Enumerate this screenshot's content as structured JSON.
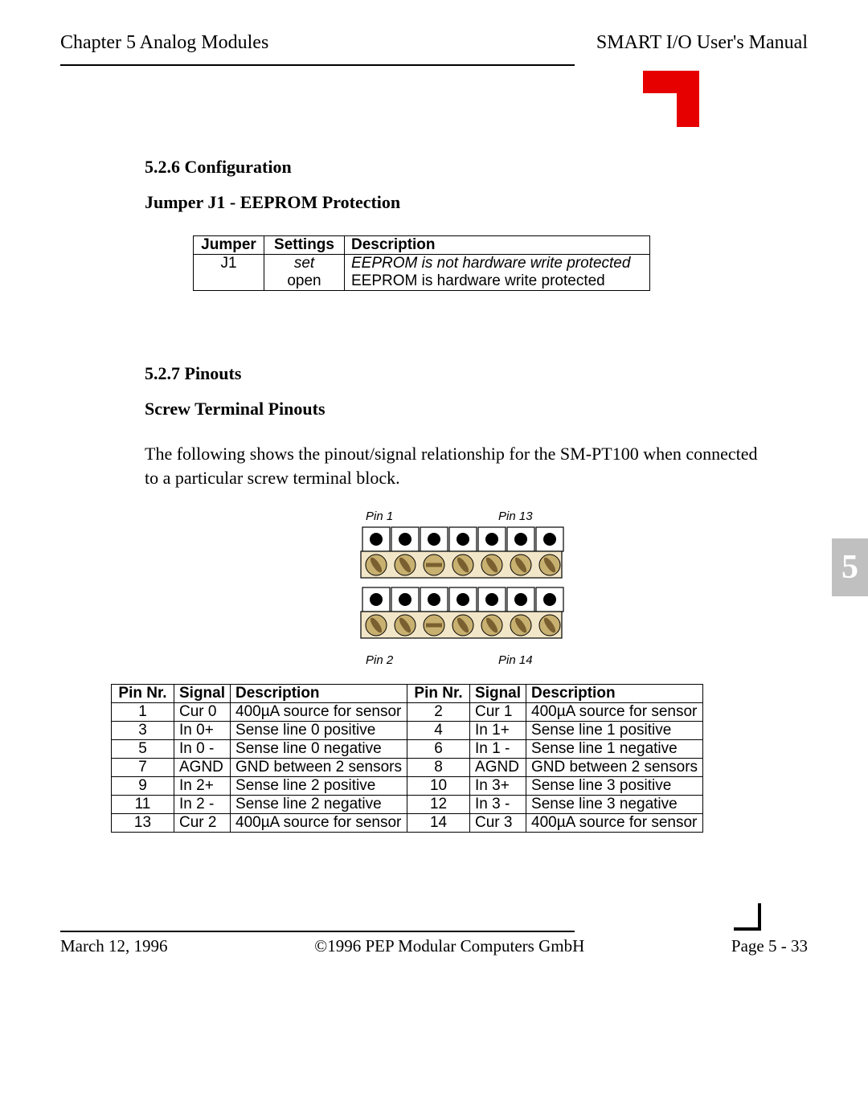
{
  "header": {
    "left": "Chapter 5  Analog Modules",
    "right": "SMART I/O User's Manual"
  },
  "sections": {
    "config_heading": "5.2.6 Configuration",
    "jumper_heading": "Jumper J1 - EEPROM Protection",
    "pinouts_heading": "5.2.7 Pinouts",
    "screw_heading": "Screw Terminal Pinouts",
    "pinouts_para": "The following shows the pinout/signal relationship for the SM-PT100 when connected to a particular screw terminal block."
  },
  "jumper_table": {
    "headers": {
      "c1": "Jumper",
      "c2": "Settings",
      "c3": "Description"
    },
    "rows": [
      {
        "jumper": "J1",
        "setting": "set",
        "setting_italic": true,
        "desc": "EEPROM is not hardware write protected",
        "desc_italic": true
      },
      {
        "jumper": "",
        "setting": "open",
        "setting_italic": false,
        "desc": "EEPROM is hardware write protected",
        "desc_italic": false
      }
    ]
  },
  "terminal_diagram": {
    "pin1_label": "Pin 1",
    "pin13_label": "Pin 13",
    "pin2_label": "Pin 2",
    "pin14_label": "Pin 14",
    "block_fill": "#f2e6c8",
    "screw_fill": "#c8b070",
    "slot_fill": "#7a6030"
  },
  "pinout_table": {
    "headers": {
      "pin_nr": "Pin   Nr.",
      "signal": "Signal",
      "description": "Description"
    },
    "rows": [
      {
        "l": [
          "1",
          "Cur 0",
          "400µA source for sensor"
        ],
        "r": [
          "2",
          "Cur 1",
          "400µA source for sensor"
        ]
      },
      {
        "l": [
          "3",
          "In 0+",
          "Sense line 0 positive"
        ],
        "r": [
          "4",
          "In 1+",
          "Sense line 1 positive"
        ]
      },
      {
        "l": [
          "5",
          "In 0 -",
          "Sense line 0 negative"
        ],
        "r": [
          "6",
          "In 1 -",
          "Sense line 1 negative"
        ]
      },
      {
        "l": [
          "7",
          "AGND",
          "GND between 2 sensors"
        ],
        "r": [
          "8",
          "AGND",
          "GND between 2 sensors"
        ]
      },
      {
        "l": [
          "9",
          "In 2+",
          "Sense line 2 positive"
        ],
        "r": [
          "10",
          "In 3+",
          "Sense line 3 positive"
        ]
      },
      {
        "l": [
          "11",
          "In 2 -",
          "Sense line 2 negative"
        ],
        "r": [
          "12",
          "In 3 -",
          "Sense line 3 negative"
        ]
      },
      {
        "l": [
          "13",
          "Cur 2",
          "400µA source for sensor"
        ],
        "r": [
          "14",
          "Cur 3",
          "400µA source for sensor"
        ]
      }
    ]
  },
  "side_tab": {
    "label": "5"
  },
  "footer": {
    "date": "March 12, 1996",
    "copyright": "©1996 PEP Modular Computers GmbH",
    "page": "Page 5 - 33"
  }
}
